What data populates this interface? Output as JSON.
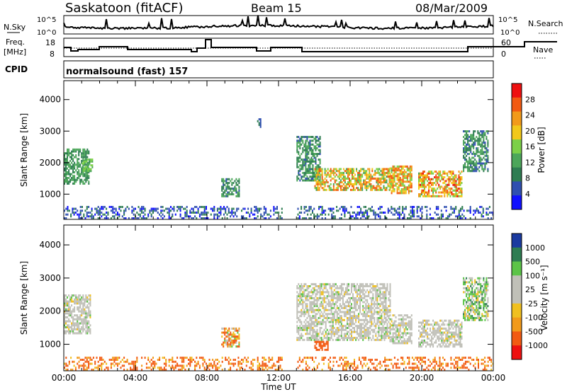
{
  "header": {
    "station": "Saskatoon (fitACF)",
    "beam": "Beam 15",
    "date": "08/Mar/2009"
  },
  "summary": {
    "nsky_label": "N.Sky",
    "nsearch_label": "N.Search",
    "left_ticks": [
      "10^5",
      "10^0"
    ],
    "right_ticks": [
      "10^5",
      "10^0"
    ],
    "freq_label_1": "Freq.",
    "freq_label_2": "[MHz]",
    "freq_ticks": [
      "18",
      "8"
    ],
    "nave_label": "Nave",
    "nave_ticks": [
      "60",
      "0"
    ],
    "cpid_label": "CPID",
    "cpid_value": "normalsound (fast) 157"
  },
  "colors": {
    "power_scale": [
      "#1010ff",
      "#2f4fb0",
      "#2e7d52",
      "#4ca65a",
      "#7cd048",
      "#f2c81a",
      "#f29a1a",
      "#f25a12",
      "#ee1010"
    ],
    "velocity_scale": [
      "#ee1010",
      "#f25a12",
      "#f29a1a",
      "#f0c020",
      "#c0c0b8",
      "#c0c0b8",
      "#5cc448",
      "#2e7d52",
      "#1a3aa0"
    ]
  },
  "chart_data": [
    {
      "type": "heatmap",
      "title": "",
      "xlabel": "Time UT",
      "ylabel": "Slant Range [km]",
      "x_ticks": [
        "00:00",
        "04:00",
        "08:00",
        "12:00",
        "16:00",
        "20:00",
        "00:00"
      ],
      "xlim_hours": [
        0,
        24
      ],
      "ylim": [
        200,
        4600
      ],
      "y_ticks": [
        1000,
        2000,
        3000,
        4000
      ],
      "colorbar_label": "Power [dB]",
      "colorbar_ticks": [
        "28",
        "24",
        "20",
        "16",
        "12",
        "8",
        "4"
      ],
      "colorbar_range": [
        0,
        32
      ],
      "regions": [
        {
          "t0": 0.0,
          "t1": 1.4,
          "r0": 1300,
          "r1": 2400,
          "v0": 8,
          "v1": 14
        },
        {
          "t0": 1.0,
          "t1": 1.6,
          "r0": 1700,
          "r1": 2100,
          "v0": 10,
          "v1": 16
        },
        {
          "t0": 13.0,
          "t1": 14.3,
          "r0": 1400,
          "r1": 2800,
          "v0": 6,
          "v1": 14
        },
        {
          "t0": 14.0,
          "t1": 18.2,
          "r0": 1100,
          "r1": 1800,
          "v0": 12,
          "v1": 28
        },
        {
          "t0": 18.2,
          "t1": 19.4,
          "r0": 1000,
          "r1": 1900,
          "v0": 14,
          "v1": 28
        },
        {
          "t0": 19.8,
          "t1": 22.2,
          "r0": 900,
          "r1": 1700,
          "v0": 14,
          "v1": 30
        },
        {
          "t0": 22.3,
          "t1": 23.7,
          "r0": 1700,
          "r1": 3000,
          "v0": 6,
          "v1": 14
        },
        {
          "t0": 8.8,
          "t1": 9.8,
          "r0": 900,
          "r1": 1500,
          "v0": 6,
          "v1": 14
        },
        {
          "t0": 10.8,
          "t1": 11.0,
          "r0": 3100,
          "r1": 3400,
          "v0": 4,
          "v1": 10
        }
      ],
      "ground_band": {
        "r0": 200,
        "r1": 600,
        "v0": 2,
        "v1": 10
      }
    },
    {
      "type": "heatmap",
      "title": "",
      "xlabel": "Time UT",
      "ylabel": "Slant Range [km]",
      "x_ticks": [
        "00:00",
        "04:00",
        "08:00",
        "12:00",
        "16:00",
        "20:00",
        "00:00"
      ],
      "xlim_hours": [
        0,
        24
      ],
      "ylim": [
        200,
        4600
      ],
      "y_ticks": [
        1000,
        2000,
        3000,
        4000
      ],
      "colorbar_label": "Velocity [m s⁻¹]",
      "colorbar_ticks": [
        "1000",
        "500",
        "100",
        "25",
        "-25",
        "-100",
        "-500",
        "-1000"
      ],
      "colorbar_range": [
        -1000,
        1000
      ],
      "regions": [
        {
          "t0": 0.0,
          "t1": 1.5,
          "r0": 1300,
          "r1": 2500,
          "v0": -30,
          "v1": 30
        },
        {
          "t0": 13.0,
          "t1": 18.2,
          "r0": 1100,
          "r1": 2800,
          "v0": -30,
          "v1": 30
        },
        {
          "t0": 18.2,
          "t1": 19.4,
          "r0": 1000,
          "r1": 1900,
          "v0": -30,
          "v1": 30
        },
        {
          "t0": 19.8,
          "t1": 22.2,
          "r0": 900,
          "r1": 1700,
          "v0": -30,
          "v1": 30
        },
        {
          "t0": 22.3,
          "t1": 23.7,
          "r0": 1700,
          "r1": 3000,
          "v0": -60,
          "v1": 120
        },
        {
          "t0": 8.8,
          "t1": 9.8,
          "r0": 900,
          "r1": 1500,
          "v0": -200,
          "v1": 50
        },
        {
          "t0": 14.0,
          "t1": 14.8,
          "r0": 800,
          "r1": 1100,
          "v0": -400,
          "v1": -150
        }
      ],
      "ground_band": {
        "r0": 200,
        "r1": 600,
        "v0": -200,
        "v1": -40
      }
    }
  ]
}
